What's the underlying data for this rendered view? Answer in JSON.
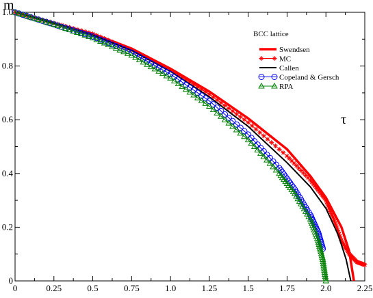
{
  "chart_data": {
    "type": "line",
    "xlabel": "τ",
    "ylabel": "m",
    "xlim": [
      0,
      2.25
    ],
    "ylim": [
      0,
      1.0
    ],
    "x_ticks": [
      "0",
      "0.25",
      "0.5",
      "0.75",
      "1.0",
      "1.25",
      "1.5",
      "1.75",
      "2.0",
      "2.25"
    ],
    "y_ticks": [
      "0",
      "0.2",
      "0.4",
      "0.6",
      "0.8",
      "1.0"
    ],
    "legend_title": "BCC lattice",
    "legend_position": "top-right",
    "grid": false,
    "series": [
      {
        "name": "Swendsen",
        "color": "#ff0000",
        "style": "thick-line",
        "points": [
          [
            0,
            1.0
          ],
          [
            0.25,
            0.96
          ],
          [
            0.5,
            0.92
          ],
          [
            0.75,
            0.865
          ],
          [
            1.0,
            0.79
          ],
          [
            1.25,
            0.705
          ],
          [
            1.5,
            0.605
          ],
          [
            1.75,
            0.49
          ],
          [
            1.9,
            0.39
          ],
          [
            2.0,
            0.31
          ],
          [
            2.1,
            0.2
          ],
          [
            2.15,
            0.11
          ],
          [
            2.18,
            0.0
          ]
        ]
      },
      {
        "name": "MC",
        "color": "#ff0000",
        "style": "stars",
        "points": [
          [
            0,
            1.0
          ],
          [
            0.25,
            0.96
          ],
          [
            0.5,
            0.92
          ],
          [
            0.75,
            0.86
          ],
          [
            1.0,
            0.785
          ],
          [
            1.25,
            0.695
          ],
          [
            1.5,
            0.59
          ],
          [
            1.75,
            0.465
          ],
          [
            1.9,
            0.375
          ],
          [
            2.0,
            0.3
          ],
          [
            2.05,
            0.23
          ],
          [
            2.1,
            0.15
          ],
          [
            2.15,
            0.1
          ],
          [
            2.2,
            0.07
          ],
          [
            2.25,
            0.06
          ]
        ]
      },
      {
        "name": "Callen",
        "color": "#000000",
        "style": "line",
        "points": [
          [
            0,
            1.0
          ],
          [
            0.25,
            0.96
          ],
          [
            0.5,
            0.915
          ],
          [
            0.75,
            0.858
          ],
          [
            1.0,
            0.78
          ],
          [
            1.25,
            0.685
          ],
          [
            1.5,
            0.575
          ],
          [
            1.75,
            0.44
          ],
          [
            1.9,
            0.35
          ],
          [
            2.0,
            0.27
          ],
          [
            2.08,
            0.17
          ],
          [
            2.13,
            0.08
          ],
          [
            2.16,
            0.0
          ]
        ]
      },
      {
        "name": "Copeland & Gersch",
        "color": "#0000ff",
        "style": "circles",
        "points": [
          [
            0,
            1.0
          ],
          [
            0.25,
            0.955
          ],
          [
            0.5,
            0.91
          ],
          [
            0.75,
            0.85
          ],
          [
            1.0,
            0.77
          ],
          [
            1.25,
            0.67
          ],
          [
            1.5,
            0.545
          ],
          [
            1.7,
            0.42
          ],
          [
            1.8,
            0.34
          ],
          [
            1.9,
            0.245
          ],
          [
            1.95,
            0.18
          ],
          [
            1.98,
            0.12
          ]
        ]
      },
      {
        "name": "RPA",
        "color": "#008000",
        "style": "triangles",
        "points": [
          [
            0,
            1.0
          ],
          [
            0.25,
            0.955
          ],
          [
            0.5,
            0.905
          ],
          [
            0.75,
            0.84
          ],
          [
            1.0,
            0.755
          ],
          [
            1.25,
            0.65
          ],
          [
            1.5,
            0.525
          ],
          [
            1.7,
            0.4
          ],
          [
            1.8,
            0.325
          ],
          [
            1.9,
            0.23
          ],
          [
            1.95,
            0.15
          ],
          [
            1.98,
            0.08
          ],
          [
            2.0,
            0.0
          ]
        ]
      }
    ]
  }
}
